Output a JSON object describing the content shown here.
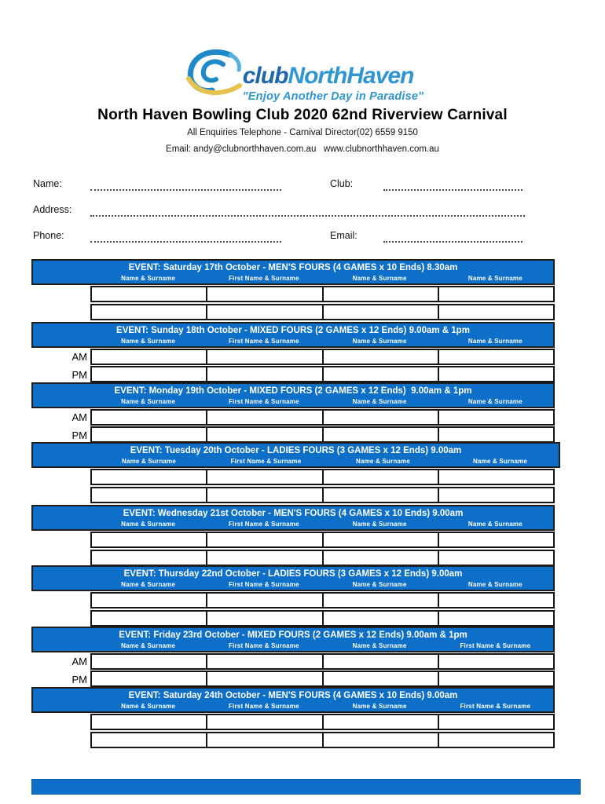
{
  "logo": {
    "name_club": "club",
    "name_rest": "NorthHaven",
    "tagline": "\"Enjoy Another Day in Paradise\""
  },
  "header": {
    "title": "North Haven Bowling Club 2020 62nd Riverview Carnival",
    "enquiries": "All Enquiries Telephone - Carnival Director(02) 6559 9150",
    "contact": "Email: andy@clubnorthhaven.com.au   www.clubnorthhaven.com.au"
  },
  "form": {
    "name_label": "Name:",
    "club_label": "Club:",
    "address_label": "Address:",
    "phone_label": "Phone:",
    "email_label": "Email:"
  },
  "events": [
    {
      "title": "EVENT: Saturday 17th October - MEN'S FOURS (4 GAMES x 10 Ends) 8.30am",
      "columns": [
        "Name & Surname",
        "First Name & Surname",
        "Name & Surname",
        "Name & Surname"
      ],
      "row_labels": [
        "",
        ""
      ]
    },
    {
      "title": "EVENT: Sunday 18th October - MIXED FOURS (2 GAMES x 12 Ends) 9.00am & 1pm",
      "columns": [
        "Name & Surname",
        "First Name & Surname",
        "Name & Surname",
        "Name & Surname"
      ],
      "row_labels": [
        "AM",
        "PM"
      ]
    },
    {
      "title": "EVENT: Monday 19th October - MIXED FOURS (2 GAMES x 12 Ends)  9.00am & 1pm",
      "columns": [
        "Name & Surname",
        "First Name & Surname",
        "Name & Surname",
        "Name & Surname"
      ],
      "row_labels": [
        "AM",
        "PM"
      ]
    },
    {
      "title": "EVENT: Tuesday 20th October - LADIES FOURS (3 GAMES x 12 Ends) 9.00am",
      "columns": [
        "Name & Surname",
        "First Name & Surname",
        "Name & Surname",
        "Name & Surname"
      ],
      "row_labels": [
        "",
        ""
      ]
    },
    {
      "title": "EVENT: Wednesday 21st October - MEN'S FOURS (4 GAMES x 10 Ends) 9.00am",
      "columns": [
        "Name & Surname",
        "First Name & Surname",
        "Name & Surname",
        "Name & Surname"
      ],
      "row_labels": [
        "",
        ""
      ]
    },
    {
      "title": "EVENT: Thursday 22nd October - LADIES FOURS (3 GAMES x 12 Ends) 9.00am",
      "columns": [
        "Name & Surname",
        "First Name & Surname",
        "Name & Surname",
        "Name & Surname"
      ],
      "row_labels": [
        "",
        ""
      ]
    },
    {
      "title": "EVENT: Friday 23rd October - MIXED FOURS (2 GAMES x 12 Ends) 9.00am & 1pm",
      "columns": [
        "Name & Surname",
        "First Name & Surname",
        "Name & Surname",
        "First Name & Surname"
      ],
      "row_labels": [
        "AM",
        "PM"
      ]
    },
    {
      "title": "EVENT: Saturday 24th October - MEN'S FOURS (4 GAMES x 10 Ends) 9.00am",
      "columns": [
        "Name & Surname",
        "First Name & Surname",
        "Name & Surname",
        "First Name & Surname"
      ],
      "row_labels": [
        "",
        ""
      ]
    }
  ],
  "colors": {
    "band_blue": "#0d6fc8",
    "logo_dark_blue": "#1d66ae",
    "logo_light_blue": "#2e96d3",
    "logo_gold": "#e6c14c",
    "border_dark": "#1f1f1f"
  }
}
